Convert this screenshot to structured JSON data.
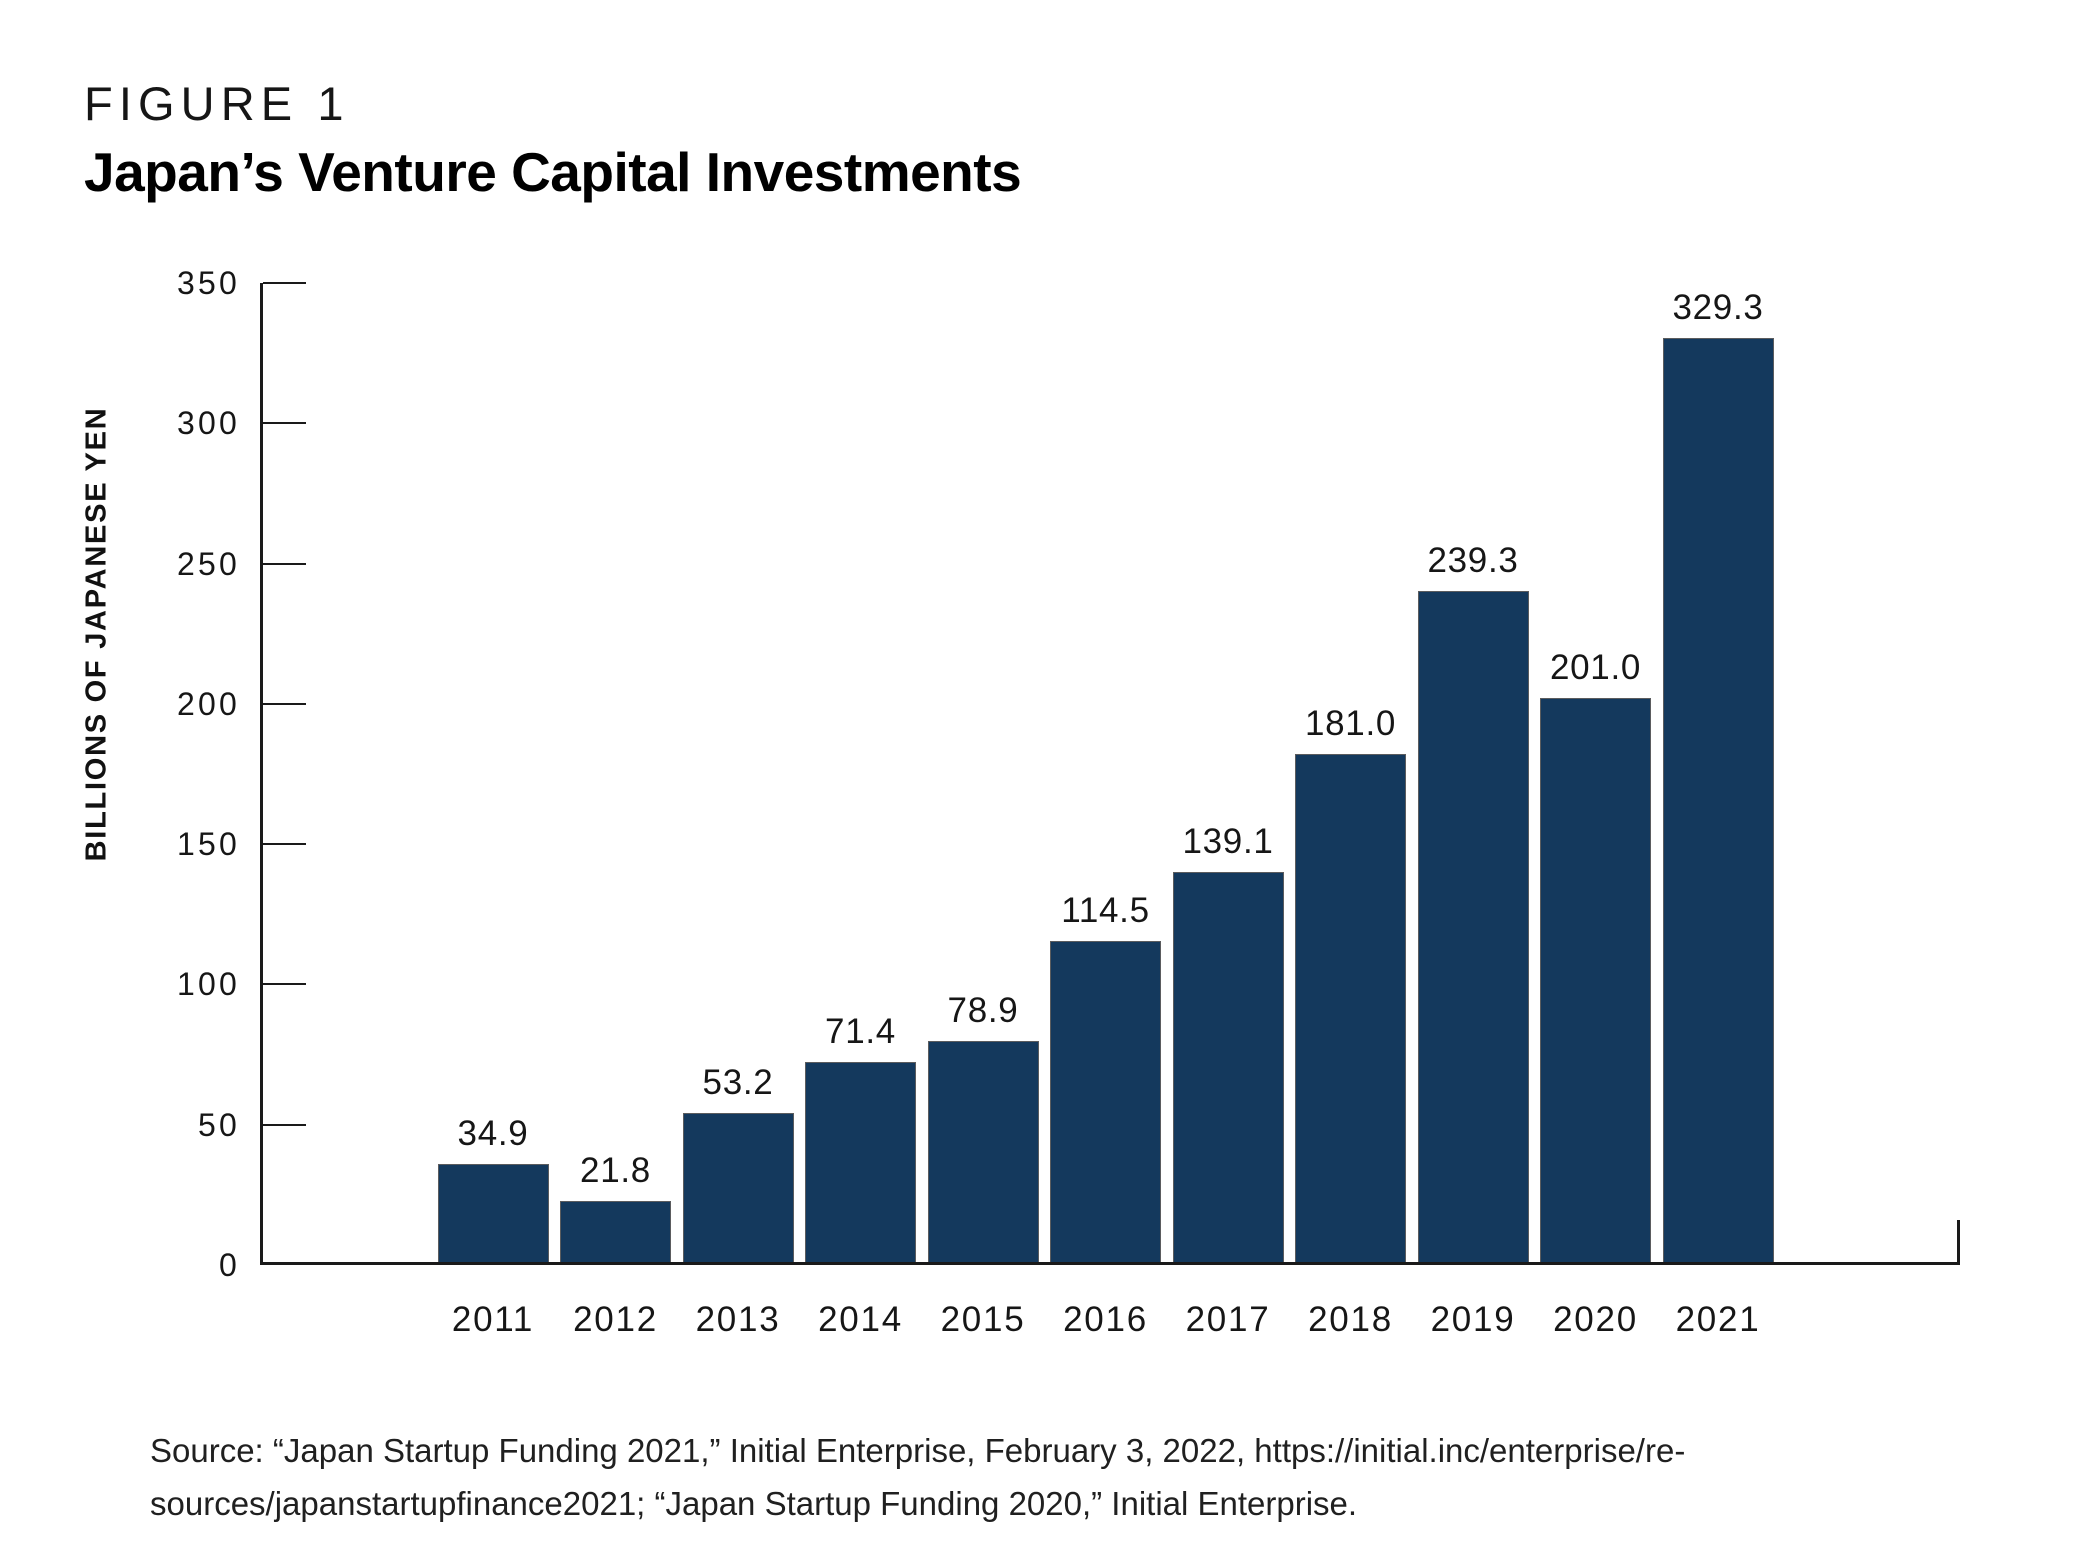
{
  "figure": {
    "kicker": "FIGURE 1",
    "title": "Japan’s Venture Capital Investments"
  },
  "chart_data": {
    "type": "bar",
    "title": "Japan’s Venture Capital Investments",
    "categories": [
      "2011",
      "2012",
      "2013",
      "2014",
      "2015",
      "2016",
      "2017",
      "2018",
      "2019",
      "2020",
      "2021"
    ],
    "values": [
      34.9,
      21.8,
      53.2,
      71.4,
      78.9,
      114.5,
      139.1,
      181.0,
      239.3,
      201.0,
      329.3
    ],
    "value_labels": [
      "34.9",
      "21.8",
      "53.2",
      "71.4",
      "78.9",
      "114.5",
      "139.1",
      "181.0",
      "239.3",
      "201.0",
      "329.3"
    ],
    "xlabel": "",
    "ylabel": "BILLIONS OF JAPANESE YEN",
    "ylim": [
      0,
      350
    ],
    "yticks": [
      0,
      50,
      100,
      150,
      200,
      250,
      300,
      350
    ],
    "grid": false,
    "legend_position": "none",
    "bar_color": "#14395D",
    "bar_border_color": "#5b5c5e",
    "axis_color": "#1a1a1a"
  },
  "source": {
    "line1": "Source: “Japan Startup Funding 2021,” Initial Enterprise, February 3, 2022, https://initial.inc/enterprise/re-",
    "line2": "sources/japanstartupfinance2021; “Japan Startup Funding 2020,” Initial Enterprise."
  }
}
